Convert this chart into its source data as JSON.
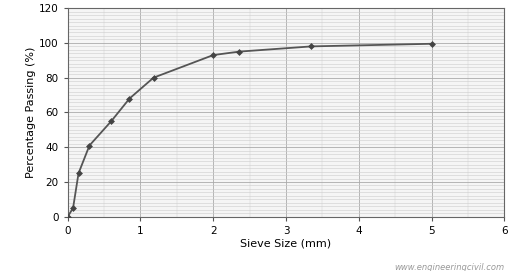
{
  "x": [
    0,
    0.075,
    0.15,
    0.3,
    0.6,
    0.85,
    1.18,
    2.0,
    2.36,
    3.35,
    5.0
  ],
  "y": [
    0,
    5,
    25,
    41,
    55,
    68,
    80,
    93,
    95,
    98,
    99.5
  ],
  "xlim": [
    0,
    6
  ],
  "ylim": [
    0,
    120
  ],
  "xticks": [
    0,
    1,
    2,
    3,
    4,
    5,
    6
  ],
  "yticks": [
    0,
    20,
    40,
    60,
    80,
    100,
    120
  ],
  "xlabel": "Sieve Size (mm)",
  "ylabel": "Percentage Passing (%)",
  "line_color": "#555555",
  "marker": "D",
  "marker_size": 3,
  "marker_color": "#444444",
  "line_width": 1.3,
  "grid_major_color": "#aaaaaa",
  "grid_minor_color": "#cccccc",
  "watermark": "www.engineeringcivil.com",
  "watermark_color": "#999999",
  "bg_color": "#ffffff",
  "plot_bg_color": "#f5f5f5"
}
